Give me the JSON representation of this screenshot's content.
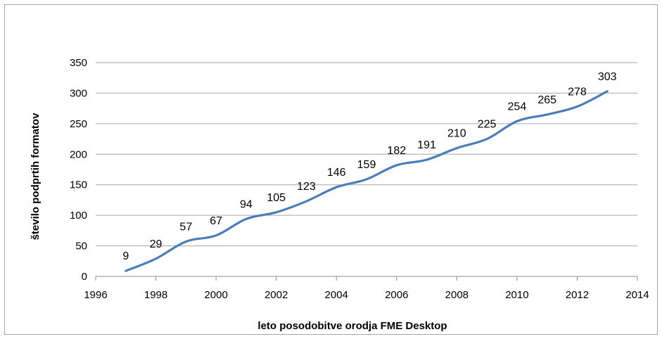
{
  "chart_data": {
    "type": "line",
    "title": "",
    "xlabel": "leto posodobitve orodja FME Desktop",
    "ylabel": "število podprtih formatov",
    "xlim": [
      1996,
      2014
    ],
    "ylim": [
      0,
      350
    ],
    "x_ticks": [
      "1996",
      "1998",
      "2000",
      "2002",
      "2004",
      "2006",
      "2008",
      "2010",
      "2012",
      "2014"
    ],
    "y_ticks": [
      "0",
      "50",
      "100",
      "150",
      "200",
      "250",
      "300",
      "350"
    ],
    "grid": "horizontal",
    "legend": "none",
    "line_color": "#4a7ebb",
    "series": [
      {
        "x": [
          1997,
          1998,
          1999,
          2000,
          2001,
          2002,
          2003,
          2004,
          2005,
          2006,
          2007,
          2008,
          2009,
          2010,
          2011,
          2012,
          2013
        ],
        "values": [
          9,
          29,
          57,
          67,
          94,
          105,
          123,
          146,
          159,
          182,
          191,
          210,
          225,
          254,
          265,
          278,
          303
        ],
        "data_labels": [
          "9",
          "29",
          "57",
          "67",
          "94",
          "105",
          "123",
          "146",
          "159",
          "182",
          "191",
          "210",
          "225",
          "254",
          "265",
          "278",
          "303"
        ]
      }
    ]
  }
}
